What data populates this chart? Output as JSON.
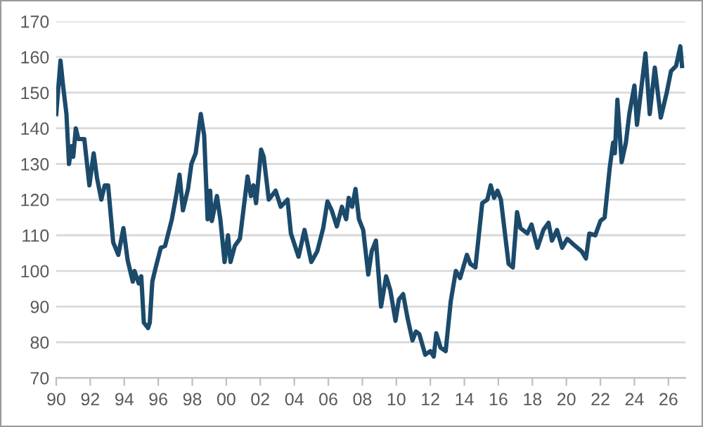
{
  "chart_data": {
    "type": "line",
    "x": [
      1990.0,
      1990.25,
      1990.4,
      1990.6,
      1990.75,
      1990.9,
      1991.0,
      1991.15,
      1991.3,
      1991.65,
      1991.95,
      1992.2,
      1992.4,
      1992.65,
      1992.85,
      1993.05,
      1993.35,
      1993.65,
      1993.95,
      1994.2,
      1994.5,
      1994.6,
      1994.85,
      1995.0,
      1995.15,
      1995.4,
      1995.5,
      1995.65,
      1995.85,
      1996.15,
      1996.4,
      1996.8,
      1997.05,
      1997.25,
      1997.45,
      1997.75,
      1997.95,
      1998.2,
      1998.5,
      1998.7,
      1998.9,
      1999.05,
      1999.15,
      1999.45,
      1999.65,
      1999.9,
      2000.1,
      2000.25,
      2000.5,
      2000.8,
      2001.25,
      2001.45,
      2001.6,
      2001.75,
      2002.05,
      2002.2,
      2002.5,
      2002.9,
      2003.2,
      2003.6,
      2003.8,
      2004.25,
      2004.6,
      2005.0,
      2005.35,
      2005.7,
      2005.95,
      2006.2,
      2006.5,
      2006.8,
      2007.05,
      2007.2,
      2007.4,
      2007.6,
      2007.8,
      2008.05,
      2008.35,
      2008.55,
      2008.8,
      2009.1,
      2009.4,
      2009.65,
      2009.95,
      2010.15,
      2010.4,
      2010.65,
      2010.95,
      2011.15,
      2011.35,
      2011.7,
      2012.0,
      2012.2,
      2012.35,
      2012.6,
      2012.9,
      2013.2,
      2013.5,
      2013.75,
      2014.15,
      2014.35,
      2014.65,
      2015.05,
      2015.35,
      2015.55,
      2015.75,
      2015.95,
      2016.15,
      2016.35,
      2016.6,
      2016.85,
      2017.1,
      2017.3,
      2017.7,
      2017.95,
      2018.3,
      2018.65,
      2018.95,
      2019.15,
      2019.45,
      2019.75,
      2020.05,
      2020.45,
      2020.9,
      2021.15,
      2021.35,
      2021.7,
      2022.0,
      2022.25,
      2022.55,
      2022.75,
      2022.85,
      2023.0,
      2023.25,
      2023.5,
      2023.7,
      2024.0,
      2024.15,
      2024.65,
      2024.9,
      2025.2,
      2025.55,
      2025.9,
      2026.15,
      2026.45,
      2026.7,
      2026.8
    ],
    "series": [
      {
        "color": "#1b4a6b",
        "values": [
          144,
          159,
          152,
          144,
          130,
          135,
          132,
          140,
          137,
          137,
          124,
          133,
          126,
          120,
          124,
          124,
          108,
          104.5,
          112,
          103,
          97,
          100,
          96.5,
          98.5,
          85.5,
          84,
          85.5,
          97,
          101,
          106.5,
          107,
          114.5,
          121,
          127,
          117,
          123,
          130,
          133,
          144,
          138,
          114.5,
          122.5,
          114,
          121,
          114.5,
          102.5,
          110,
          102.5,
          107,
          109,
          126.5,
          121,
          124,
          119,
          134,
          132,
          120,
          122.5,
          118,
          120,
          110.5,
          104,
          111.5,
          102.5,
          105.5,
          112,
          119.5,
          117,
          112.5,
          118,
          114.5,
          120.5,
          118,
          123,
          114.5,
          111.5,
          99,
          105.5,
          108.5,
          90,
          98.5,
          94.5,
          86,
          92,
          93.5,
          87,
          80.5,
          83,
          82.3,
          76.5,
          77.5,
          76,
          82.5,
          78.5,
          77.5,
          91.5,
          100,
          98,
          104.5,
          102,
          101,
          119,
          120,
          124,
          120.5,
          122.5,
          120,
          112,
          102,
          101,
          116.5,
          112,
          110.5,
          113,
          106.5,
          111.5,
          113.5,
          108.5,
          111.5,
          106.5,
          109,
          107.3,
          105.5,
          103.5,
          110.5,
          110,
          114,
          115,
          129,
          136,
          133,
          148,
          130.5,
          136,
          144,
          152,
          141,
          161,
          144,
          157,
          143,
          150,
          156,
          157.5,
          163,
          157.5
        ]
      }
    ],
    "xlim": [
      1990,
      2027
    ],
    "xticks": [
      {
        "value": 1990,
        "label": "90"
      },
      {
        "value": 1992,
        "label": "92"
      },
      {
        "value": 1994,
        "label": "94"
      },
      {
        "value": 1996,
        "label": "96"
      },
      {
        "value": 1998,
        "label": "98"
      },
      {
        "value": 2000,
        "label": "00"
      },
      {
        "value": 2002,
        "label": "02"
      },
      {
        "value": 2004,
        "label": "04"
      },
      {
        "value": 2006,
        "label": "06"
      },
      {
        "value": 2008,
        "label": "08"
      },
      {
        "value": 2010,
        "label": "10"
      },
      {
        "value": 2012,
        "label": "12"
      },
      {
        "value": 2014,
        "label": "14"
      },
      {
        "value": 2016,
        "label": "16"
      },
      {
        "value": 2018,
        "label": "18"
      },
      {
        "value": 2020,
        "label": "20"
      },
      {
        "value": 2022,
        "label": "22"
      },
      {
        "value": 2024,
        "label": "24"
      },
      {
        "value": 2026,
        "label": "26"
      }
    ],
    "ylim": [
      70,
      170
    ],
    "yticks": [
      70,
      80,
      90,
      100,
      110,
      120,
      130,
      140,
      150,
      160,
      170
    ],
    "grid": "y",
    "legend": false,
    "marker": "none",
    "line_style": "solid"
  }
}
